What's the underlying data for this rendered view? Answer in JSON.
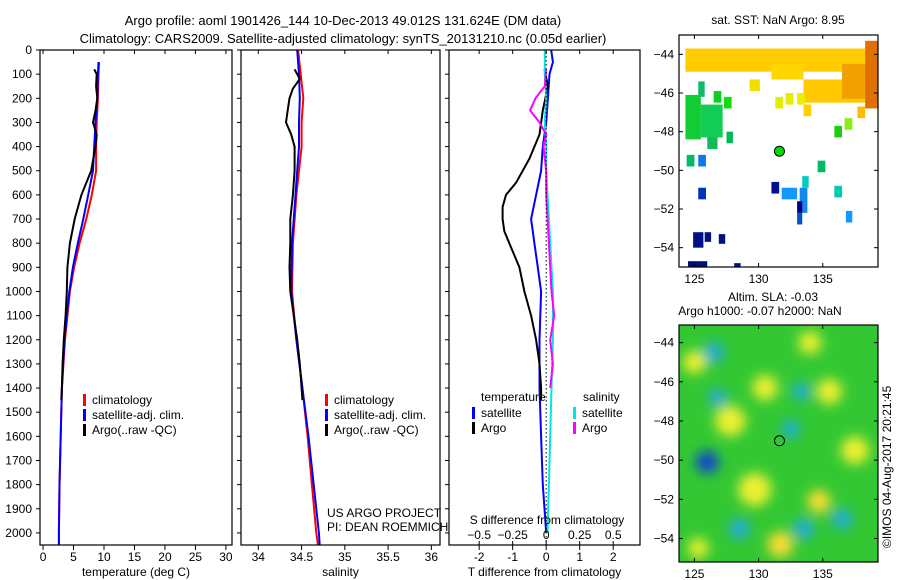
{
  "title_line1": "Argo profile: aoml 1901426_144 10-Dec-2013 49.012S 131.624E (DM data)",
  "title_line2": "Climatology: CARS2009. Satellite-adjusted climatology: synTS_20131210.nc (0.05d earlier)",
  "credit": "©IMOS 04-Aug-2017 20:21:45",
  "colors": {
    "climatology": "#ff0000",
    "satellite": "#0000ff",
    "argo": "#000000",
    "sal_satellite": "#00e5e5",
    "sal_argo": "#ff00ff"
  },
  "chart_data": [
    {
      "type": "line",
      "title": "",
      "xlabel": "temperature (deg C)",
      "ylabel": "",
      "xlim": [
        -0.5,
        31
      ],
      "ylim": [
        2050,
        0
      ],
      "xticks": [
        0,
        5,
        10,
        15,
        20,
        25,
        30
      ],
      "yticks": [
        0,
        100,
        200,
        300,
        400,
        500,
        600,
        700,
        800,
        900,
        1000,
        1100,
        1200,
        1300,
        1400,
        1500,
        1600,
        1700,
        1800,
        1900,
        2000
      ],
      "legend": [
        "climatology",
        "satellite-adj. clim.",
        "Argo(..raw -QC)"
      ],
      "legend_position": "lower-center",
      "series": [
        {
          "name": "climatology",
          "depth": [
            50,
            100,
            200,
            300,
            400,
            500,
            600,
            700,
            800,
            900,
            1000,
            1200,
            1400,
            1600,
            1800,
            2000,
            2050
          ],
          "values": [
            9.2,
            9.1,
            9.0,
            8.8,
            8.7,
            8.7,
            8.0,
            7.1,
            6.0,
            5.1,
            4.4,
            3.6,
            3.1,
            2.9,
            2.7,
            2.6,
            2.6
          ]
        },
        {
          "name": "satellite-adj. clim.",
          "depth": [
            50,
            100,
            200,
            300,
            400,
            500,
            600,
            700,
            800,
            900,
            1000,
            1200,
            1400,
            1600,
            1800,
            2000,
            2050
          ],
          "values": [
            9.1,
            9.0,
            8.9,
            8.6,
            8.4,
            8.2,
            7.4,
            6.6,
            5.7,
            4.9,
            4.3,
            3.5,
            3.1,
            2.9,
            2.7,
            2.6,
            2.6
          ]
        },
        {
          "name": "Argo(..raw -QC)",
          "depth": [
            80,
            100,
            150,
            200,
            250,
            300,
            350,
            400,
            500,
            600,
            700,
            800,
            900,
            1000,
            1100,
            1200,
            1300,
            1400,
            1450
          ],
          "values": [
            8.4,
            8.8,
            8.7,
            8.9,
            8.6,
            8.2,
            8.8,
            8.6,
            7.9,
            6.3,
            5.2,
            4.4,
            4.0,
            3.9,
            3.7,
            3.4,
            3.2,
            3.1,
            3.0
          ]
        }
      ]
    },
    {
      "type": "line",
      "xlabel": "salinity",
      "xlim": [
        33.8,
        36.1
      ],
      "ylim": [
        2050,
        0
      ],
      "xticks": [
        34,
        34.5,
        35,
        35.5,
        36
      ],
      "legend": [
        "climatology",
        "satellite-adj. clim.",
        "Argo(..raw -QC)"
      ],
      "annotation": [
        "US ARGO PROJECT",
        "PI: DEAN ROEMMICH"
      ],
      "series": [
        {
          "name": "climatology",
          "depth": [
            0,
            100,
            200,
            300,
            400,
            500,
            600,
            800,
            1000,
            1200,
            1400,
            1600,
            1800,
            2000,
            2050
          ],
          "values": [
            34.46,
            34.49,
            34.52,
            34.5,
            34.5,
            34.47,
            34.44,
            34.4,
            34.39,
            34.44,
            34.51,
            34.57,
            34.62,
            34.67,
            34.69
          ]
        },
        {
          "name": "satellite-adj. clim.",
          "depth": [
            0,
            100,
            200,
            300,
            400,
            500,
            600,
            800,
            1000,
            1200,
            1400,
            1600,
            1800,
            2000,
            2050
          ],
          "values": [
            34.45,
            34.47,
            34.48,
            34.47,
            34.47,
            34.45,
            34.43,
            34.39,
            34.38,
            34.44,
            34.51,
            34.58,
            34.64,
            34.7,
            34.71
          ]
        },
        {
          "name": "Argo(..raw -QC)",
          "depth": [
            80,
            120,
            160,
            200,
            250,
            300,
            350,
            400,
            500,
            600,
            700,
            800,
            900,
            1000,
            1100,
            1200,
            1300,
            1400,
            1450
          ],
          "values": [
            34.42,
            34.48,
            34.4,
            34.36,
            34.34,
            34.32,
            34.38,
            34.42,
            34.42,
            34.4,
            34.37,
            34.37,
            34.36,
            34.37,
            34.41,
            34.45,
            34.48,
            34.5,
            34.51
          ]
        }
      ]
    },
    {
      "type": "line",
      "xlabel": "T difference from climatology",
      "xlabel2": "S difference from climatology",
      "xlim": [
        -2.9,
        2.8
      ],
      "ylim": [
        2050,
        0
      ],
      "xticks": [
        -2,
        -1,
        0,
        1,
        2
      ],
      "xticks_s": [
        -0.5,
        -0.25,
        0,
        0.25,
        0.5
      ],
      "legend_temperature": "temperature",
      "legend_salinity": "salinity",
      "legend_items": [
        "satellite",
        "Argo"
      ],
      "series": [
        {
          "name": "T satellite",
          "var": "T",
          "depth": [
            0,
            50,
            100,
            200,
            300,
            400,
            500,
            600,
            700,
            800,
            900,
            1000,
            1200,
            1400,
            1600,
            1800,
            2000
          ],
          "values": [
            0.15,
            0.2,
            0.1,
            0.05,
            0.0,
            -0.1,
            -0.15,
            -0.3,
            -0.45,
            -0.35,
            -0.25,
            -0.15,
            -0.2,
            -0.2,
            -0.15,
            -0.1,
            0.0
          ]
        },
        {
          "name": "T Argo",
          "var": "T",
          "depth": [
            80,
            150,
            250,
            350,
            450,
            550,
            600,
            650,
            700,
            750,
            800,
            900,
            1000,
            1100,
            1200,
            1300,
            1400,
            1450
          ],
          "values": [
            -0.05,
            0.05,
            -0.1,
            -0.2,
            -0.5,
            -0.9,
            -1.2,
            -1.3,
            -1.3,
            -1.25,
            -1.1,
            -0.8,
            -0.65,
            -0.45,
            -0.3,
            -0.2,
            -0.15,
            -0.15
          ]
        },
        {
          "name": "S satellite",
          "var": "S",
          "depth": [
            0,
            100,
            200,
            300,
            400,
            500,
            600,
            700,
            800,
            900,
            1000,
            1200,
            1400,
            1600,
            1800,
            2000
          ],
          "values": [
            -0.01,
            -0.01,
            0.0,
            -0.01,
            0.0,
            0.0,
            0.01,
            0.02,
            0.03,
            0.04,
            0.05,
            0.05,
            0.04,
            0.03,
            0.02,
            0.01
          ]
        },
        {
          "name": "S Argo",
          "var": "S",
          "depth": [
            80,
            150,
            200,
            250,
            300,
            350,
            400,
            500,
            600,
            800,
            1000,
            1100,
            1200,
            1300,
            1400
          ],
          "values": [
            0.0,
            -0.01,
            -0.08,
            -0.12,
            -0.05,
            0.0,
            -0.02,
            0.0,
            0.0,
            0.02,
            0.04,
            0.06,
            0.03,
            0.05,
            0.03
          ]
        }
      ]
    },
    {
      "type": "heatmap",
      "title": "sat. SST: NaN Argo: 8.95",
      "xlim": [
        123.8,
        139.3
      ],
      "ylim": [
        -55,
        -43
      ],
      "xticks": [
        125,
        130,
        135
      ],
      "yticks": [
        -44,
        -46,
        -48,
        -50,
        -52,
        -54
      ],
      "argo_position": {
        "lon": 131.624,
        "lat": -49.012,
        "color": "#00dd00"
      },
      "cells": [
        {
          "lon": 124.3,
          "lat": -43.7,
          "w": 15,
          "h": 1.2,
          "color": "#ffcc00"
        },
        {
          "lon": 131,
          "lat": -44.5,
          "w": 2.5,
          "h": 0.8,
          "color": "#ffd700"
        },
        {
          "lon": 133.5,
          "lat": -45.3,
          "w": 5.8,
          "h": 1.2,
          "color": "#ffc800"
        },
        {
          "lon": 136.5,
          "lat": -44.5,
          "w": 2.8,
          "h": 1.8,
          "color": "#f0a000"
        },
        {
          "lon": 138.3,
          "lat": -43.3,
          "w": 1,
          "h": 3.5,
          "color": "#e07000"
        },
        {
          "lon": 129.3,
          "lat": -45.3,
          "w": 0.8,
          "h": 0.6,
          "color": "#f0e000"
        },
        {
          "lon": 131.3,
          "lat": -46.2,
          "w": 0.6,
          "h": 0.6,
          "color": "#e0ee00"
        },
        {
          "lon": 132.1,
          "lat": -46.0,
          "w": 0.6,
          "h": 0.6,
          "color": "#e6ee00"
        },
        {
          "lon": 133,
          "lat": -46.0,
          "w": 0.6,
          "h": 0.6,
          "color": "#eeee00"
        },
        {
          "lon": 133.5,
          "lat": -46.6,
          "w": 0.6,
          "h": 0.6,
          "color": "#ffd000"
        },
        {
          "lon": 137.7,
          "lat": -46.7,
          "w": 0.6,
          "h": 0.6,
          "color": "#ffbb00"
        },
        {
          "lon": 125.3,
          "lat": -45.4,
          "w": 0.5,
          "h": 0.8,
          "color": "#11bb66"
        },
        {
          "lon": 124.3,
          "lat": -46.1,
          "w": 1.2,
          "h": 2.3,
          "color": "#11cc33"
        },
        {
          "lon": 125.5,
          "lat": -46.6,
          "w": 1.7,
          "h": 1.7,
          "color": "#11cc55"
        },
        {
          "lon": 126.5,
          "lat": -45.9,
          "w": 0.6,
          "h": 0.6,
          "color": "#11cc22"
        },
        {
          "lon": 127.3,
          "lat": -46.2,
          "w": 0.6,
          "h": 0.6,
          "color": "#11dd11"
        },
        {
          "lon": 127.5,
          "lat": -48.0,
          "w": 0.5,
          "h": 0.6,
          "color": "#00bb55"
        },
        {
          "lon": 126,
          "lat": -48.3,
          "w": 0.8,
          "h": 0.6,
          "color": "#11bb55"
        },
        {
          "lon": 124.4,
          "lat": -49.2,
          "w": 0.6,
          "h": 0.6,
          "color": "#00bb66"
        },
        {
          "lon": 125.3,
          "lat": -49.2,
          "w": 0.6,
          "h": 0.6,
          "color": "#1177ee"
        },
        {
          "lon": 125.3,
          "lat": -50.9,
          "w": 0.6,
          "h": 0.6,
          "color": "#0033bb"
        },
        {
          "lon": 131,
          "lat": -50.6,
          "w": 0.6,
          "h": 0.6,
          "color": "#001199"
        },
        {
          "lon": 131.8,
          "lat": -50.9,
          "w": 1.2,
          "h": 0.6,
          "color": "#1199ff"
        },
        {
          "lon": 133.2,
          "lat": -50.9,
          "w": 0.6,
          "h": 1.3,
          "color": "#1188ee"
        },
        {
          "lon": 133.4,
          "lat": -50.3,
          "w": 0.5,
          "h": 0.6,
          "color": "#00ccbb"
        },
        {
          "lon": 133,
          "lat": -51.6,
          "w": 0.4,
          "h": 0.6,
          "color": "#000077"
        },
        {
          "lon": 133,
          "lat": -52.2,
          "w": 0.4,
          "h": 0.6,
          "color": "#0055cc"
        },
        {
          "lon": 134.6,
          "lat": -49.5,
          "w": 0.6,
          "h": 0.6,
          "color": "#00bb66"
        },
        {
          "lon": 135.9,
          "lat": -47.7,
          "w": 0.6,
          "h": 0.6,
          "color": "#22cc11"
        },
        {
          "lon": 136.7,
          "lat": -47.3,
          "w": 0.6,
          "h": 0.6,
          "color": "#88ee11"
        },
        {
          "lon": 135.9,
          "lat": -50.8,
          "w": 0.6,
          "h": 0.6,
          "color": "#00ccaa"
        },
        {
          "lon": 136.8,
          "lat": -52.1,
          "w": 0.5,
          "h": 0.6,
          "color": "#1199ff"
        },
        {
          "lon": 124.9,
          "lat": -53.2,
          "w": 0.8,
          "h": 0.8,
          "color": "#001188"
        },
        {
          "lon": 125.8,
          "lat": -53.2,
          "w": 0.5,
          "h": 0.5,
          "color": "#001188"
        },
        {
          "lon": 126.9,
          "lat": -53.3,
          "w": 0.5,
          "h": 0.5,
          "color": "#001177"
        },
        {
          "lon": 124.5,
          "lat": -54.7,
          "w": 1.5,
          "h": 0.4,
          "color": "#001177"
        },
        {
          "lon": 128.1,
          "lat": -54.8,
          "w": 0.5,
          "h": 0.3,
          "color": "#001188"
        }
      ]
    },
    {
      "type": "heatmap",
      "title_line1": "Altim. SLA: -0.03",
      "title_line2": "Argo h1000: -0.07 h2000: NaN",
      "xlim": [
        123.8,
        139.3
      ],
      "ylim": [
        -55.2,
        -43.1
      ],
      "xticks": [
        125,
        130,
        135
      ],
      "yticks": [
        -44,
        -46,
        -48,
        -50,
        -52,
        -54
      ],
      "argo_position": {
        "lon": 131.624,
        "lat": -49.012
      },
      "background_color": "#33c833",
      "anomalies": [
        {
          "lon": 126,
          "lat": -50.1,
          "r": 0.9,
          "value": -0.3
        },
        {
          "lon": 126.8,
          "lat": -46.8,
          "r": 0.7,
          "value": -0.2
        },
        {
          "lon": 126.5,
          "lat": -44.5,
          "r": 0.8,
          "value": -0.15
        },
        {
          "lon": 128.5,
          "lat": -53.5,
          "r": 0.8,
          "value": -0.2
        },
        {
          "lon": 132.5,
          "lat": -48.4,
          "r": 0.7,
          "value": -0.2
        },
        {
          "lon": 133.3,
          "lat": -46.5,
          "r": 0.7,
          "value": -0.15
        },
        {
          "lon": 133.5,
          "lat": -53.5,
          "r": 0.8,
          "value": -0.2
        },
        {
          "lon": 136.5,
          "lat": -53,
          "r": 0.8,
          "value": -0.15
        },
        {
          "lon": 127.8,
          "lat": -48,
          "r": 1.2,
          "value": 0.2
        },
        {
          "lon": 129.7,
          "lat": -51.5,
          "r": 1.3,
          "value": 0.2
        },
        {
          "lon": 131.7,
          "lat": -54.3,
          "r": 1.0,
          "value": 0.3
        },
        {
          "lon": 130.5,
          "lat": -46.3,
          "r": 1.0,
          "value": 0.15
        },
        {
          "lon": 134.7,
          "lat": -52.1,
          "r": 0.9,
          "value": 0.25
        },
        {
          "lon": 135.5,
          "lat": -46.5,
          "r": 1.0,
          "value": 0.15
        },
        {
          "lon": 125,
          "lat": -45,
          "r": 0.9,
          "value": 0.15
        },
        {
          "lon": 134,
          "lat": -44,
          "r": 0.9,
          "value": 0.12
        },
        {
          "lon": 137.5,
          "lat": -49.5,
          "r": 1.1,
          "value": 0.12
        },
        {
          "lon": 125.3,
          "lat": -54.5,
          "r": 0.8,
          "value": 0.15
        }
      ]
    }
  ]
}
